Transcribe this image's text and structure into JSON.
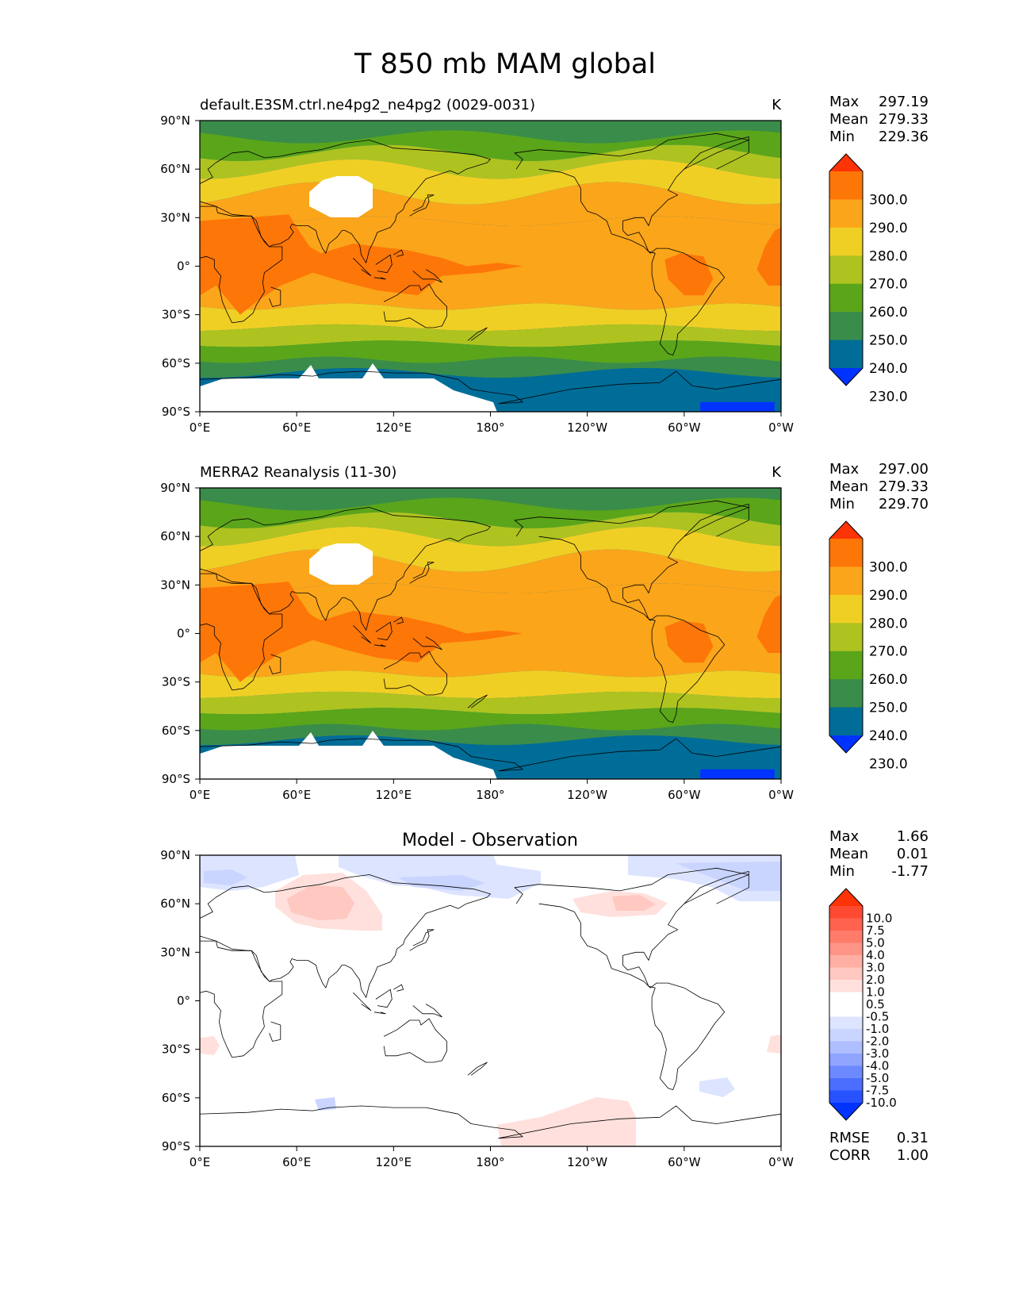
{
  "figure": {
    "title": "T 850 mb MAM global"
  },
  "colors": {
    "seq": [
      "#0033ff",
      "#006d98",
      "#3a8c4a",
      "#5aa51a",
      "#aec320",
      "#f0cf25",
      "#fba51a",
      "#fd7608",
      "#fe3306"
    ],
    "diff": [
      "#0033ff",
      "#2952ff",
      "#4c6eff",
      "#6d89ff",
      "#8ea4ff",
      "#aebeff",
      "#c9d4ff",
      "#dde4ff",
      "#ffffff",
      "#ffffff",
      "#ffe0dc",
      "#ffc8c0",
      "#ffafa3",
      "#ff9586",
      "#ff7c6a",
      "#ff624e",
      "#ff4a33",
      "#fe3306"
    ],
    "land": "#000000"
  },
  "chart_data": [
    {
      "type": "heatmap",
      "title": "default.E3SM.ctrl.ne4pg2_ne4pg2 (0029-0031)",
      "units": "K",
      "stats": {
        "max_label": "Max",
        "max": "297.19",
        "mean_label": "Mean",
        "mean": "279.33",
        "min_label": "Min",
        "min": "229.36"
      },
      "x_ticks": [
        "0°E",
        "60°E",
        "120°E",
        "180°",
        "120°W",
        "60°W",
        "0°W"
      ],
      "y_ticks": [
        "90°N",
        "60°N",
        "30°N",
        "0°",
        "30°S",
        "60°S",
        "90°S"
      ],
      "xlim": [
        0,
        360
      ],
      "ylim": [
        -90,
        90
      ],
      "colorbar": {
        "levels": [
          "230.0",
          "240.0",
          "250.0",
          "260.0",
          "270.0",
          "280.0",
          "290.0",
          "300.0"
        ]
      }
    },
    {
      "type": "heatmap",
      "title": "MERRA2 Reanalysis (11-30)",
      "units": "K",
      "stats": {
        "max_label": "Max",
        "max": "297.00",
        "mean_label": "Mean",
        "mean": "279.33",
        "min_label": "Min",
        "min": "229.70"
      },
      "x_ticks": [
        "0°E",
        "60°E",
        "120°E",
        "180°",
        "120°W",
        "60°W",
        "0°W"
      ],
      "y_ticks": [
        "90°N",
        "60°N",
        "30°N",
        "0°",
        "30°S",
        "60°S",
        "90°S"
      ],
      "xlim": [
        0,
        360
      ],
      "ylim": [
        -90,
        90
      ],
      "colorbar": {
        "levels": [
          "230.0",
          "240.0",
          "250.0",
          "260.0",
          "270.0",
          "280.0",
          "290.0",
          "300.0"
        ]
      }
    },
    {
      "type": "heatmap",
      "title": "Model - Observation",
      "units": "",
      "stats": {
        "max_label": "Max",
        "max": "1.66",
        "mean_label": "Mean",
        "mean": "0.01",
        "min_label": "Min",
        "min": "-1.77"
      },
      "x_ticks": [
        "0°E",
        "60°E",
        "120°E",
        "180°",
        "120°W",
        "60°W",
        "0°W"
      ],
      "y_ticks": [
        "90°N",
        "60°N",
        "30°N",
        "0°",
        "30°S",
        "60°S",
        "90°S"
      ],
      "xlim": [
        0,
        360
      ],
      "ylim": [
        -90,
        90
      ],
      "colorbar": {
        "levels": [
          "-10.0",
          "-7.5",
          "-5.0",
          "-4.0",
          "-3.0",
          "-2.0",
          "-1.0",
          "-0.5",
          "0.5",
          "1.0",
          "2.0",
          "3.0",
          "4.0",
          "5.0",
          "7.5",
          "10.0"
        ]
      },
      "metrics": {
        "rmse_label": "RMSE",
        "rmse": "0.31",
        "corr_label": "CORR",
        "corr": "1.00"
      }
    }
  ]
}
